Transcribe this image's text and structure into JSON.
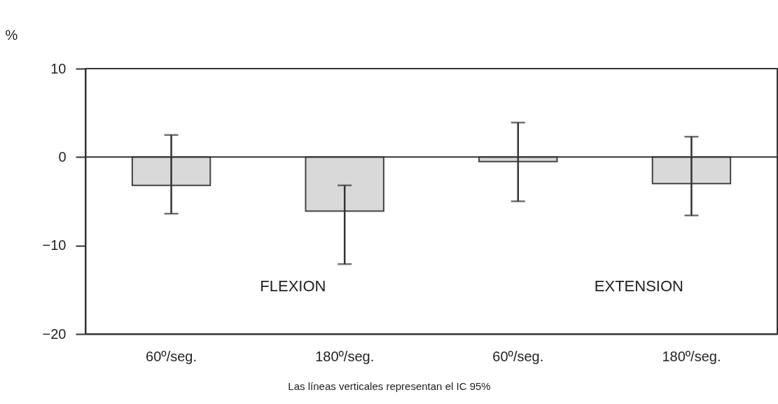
{
  "chart_data": {
    "type": "bar",
    "ylabel": "%",
    "categories": [
      "60º/seg.",
      "180º/seg.",
      "60º/seg.",
      "180º/seg."
    ],
    "values": [
      -3.2,
      -6.1,
      -0.5,
      -3.0
    ],
    "errors": [
      [
        -6.4,
        2.5
      ],
      [
        -12.1,
        -3.2
      ],
      [
        -5.0,
        3.9
      ],
      [
        -6.6,
        2.3
      ]
    ],
    "color": "#d9d9d9",
    "ylim": [
      -20,
      10
    ],
    "yticks": [
      -20,
      -10,
      0,
      10
    ],
    "grid": false,
    "ref_lines": [
      {
        "axis": "y",
        "value": 0
      }
    ],
    "annotations": [
      "FLEXION",
      "EXTENSION",
      "Las líneas verticales representan el IC 95%"
    ]
  }
}
